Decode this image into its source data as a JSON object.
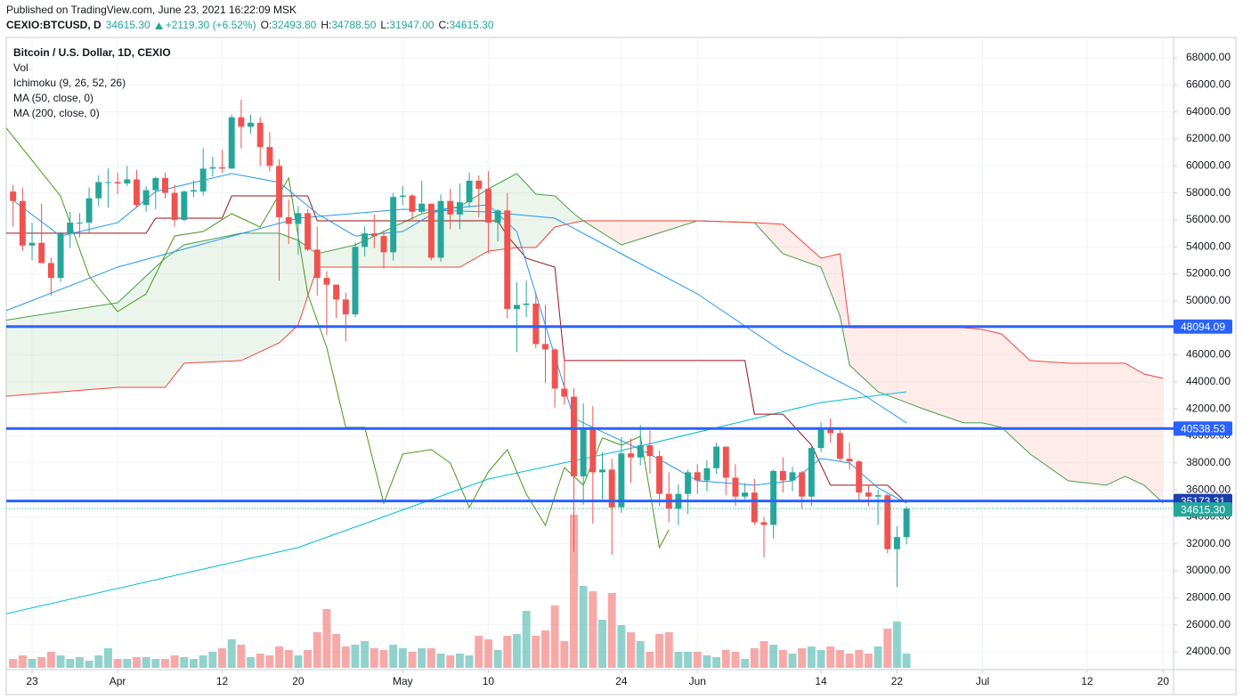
{
  "header": {
    "published": "Published on TradingView.com, June 23, 2021 16:22:09 MSK",
    "symbol": "CEXIO:BTCUSD, D",
    "last": "34615.30",
    "change": "+2119.30 (+6.52%)",
    "ohlc": [
      {
        "key": "O:",
        "value": "32493.80"
      },
      {
        "key": "H:",
        "value": "34788.50"
      },
      {
        "key": "L:",
        "value": "31947.00"
      },
      {
        "key": "C:",
        "value": "34615.30"
      }
    ]
  },
  "chart_data": {
    "type": "candlestick",
    "title": "Bitcoin / U.S. Dollar, 1D, CEXIO",
    "legend": [
      "Vol",
      "Ichimoku (9, 26, 52, 26)",
      "MA (50, close, 0)",
      "MA (200, close, 0)"
    ],
    "up_color": "#26a69a",
    "down_color": "#ef5350",
    "x": [
      "2021-03-21",
      "2021-03-22",
      "2021-03-23",
      "2021-03-24",
      "2021-03-25",
      "2021-03-26",
      "2021-03-27",
      "2021-03-28",
      "2021-03-29",
      "2021-03-30",
      "2021-03-31",
      "2021-04-01",
      "2021-04-02",
      "2021-04-03",
      "2021-04-04",
      "2021-04-05",
      "2021-04-06",
      "2021-04-07",
      "2021-04-08",
      "2021-04-09",
      "2021-04-10",
      "2021-04-11",
      "2021-04-12",
      "2021-04-13",
      "2021-04-14",
      "2021-04-15",
      "2021-04-16",
      "2021-04-17",
      "2021-04-18",
      "2021-04-19",
      "2021-04-20",
      "2021-04-21",
      "2021-04-22",
      "2021-04-23",
      "2021-04-24",
      "2021-04-25",
      "2021-04-26",
      "2021-04-27",
      "2021-04-28",
      "2021-04-29",
      "2021-04-30",
      "2021-05-01",
      "2021-05-02",
      "2021-05-03",
      "2021-05-04",
      "2021-05-05",
      "2021-05-06",
      "2021-05-07",
      "2021-05-08",
      "2021-05-09",
      "2021-05-10",
      "2021-05-11",
      "2021-05-12",
      "2021-05-13",
      "2021-05-14",
      "2021-05-15",
      "2021-05-16",
      "2021-05-17",
      "2021-05-18",
      "2021-05-19",
      "2021-05-20",
      "2021-05-21",
      "2021-05-22",
      "2021-05-23",
      "2021-05-24",
      "2021-05-25",
      "2021-05-26",
      "2021-05-27",
      "2021-05-28",
      "2021-05-29",
      "2021-05-30",
      "2021-05-31",
      "2021-06-01",
      "2021-06-02",
      "2021-06-03",
      "2021-06-04",
      "2021-06-05",
      "2021-06-06",
      "2021-06-07",
      "2021-06-08",
      "2021-06-09",
      "2021-06-10",
      "2021-06-11",
      "2021-06-12",
      "2021-06-13",
      "2021-06-14",
      "2021-06-15",
      "2021-06-16",
      "2021-06-17",
      "2021-06-18",
      "2021-06-19",
      "2021-06-20",
      "2021-06-21",
      "2021-06-22",
      "2021-06-23"
    ],
    "open": [
      58100,
      57400,
      54100,
      54300,
      52800,
      51700,
      55000,
      55800,
      55800,
      57600,
      58800,
      58800,
      58700,
      59000,
      57100,
      58200,
      59100,
      58000,
      56000,
      58100,
      58100,
      59800,
      59900,
      59800,
      63600,
      62900,
      63200,
      61400,
      60000,
      56200,
      55700,
      56500,
      53800,
      51700,
      51200,
      50100,
      49000,
      54000,
      55000,
      54800,
      53600,
      57700,
      57800,
      56600,
      57200,
      53200,
      57400,
      56400,
      57300,
      58900,
      58300,
      55800,
      56700,
      49400,
      49700,
      49800,
      46800,
      46400,
      43500,
      42900,
      37000,
      40600,
      37300,
      37500,
      34700,
      38700,
      38400,
      39300,
      38500,
      35700,
      34600,
      35700,
      37300,
      36700,
      37600,
      39200,
      36900,
      35500,
      35800,
      33600,
      33400,
      37400,
      36700,
      37300,
      35500,
      39100,
      40500,
      40200,
      38300,
      38100,
      35800,
      35500,
      35600,
      31600,
      32493.8
    ],
    "high": [
      58600,
      58400,
      55800,
      57200,
      53200,
      55100,
      56600,
      56500,
      58400,
      59300,
      59800,
      59500,
      60000,
      59700,
      58500,
      59200,
      59500,
      58600,
      58200,
      58900,
      61300,
      60700,
      61200,
      63800,
      64900,
      63800,
      63600,
      62500,
      60500,
      57500,
      57000,
      56800,
      55500,
      52200,
      51200,
      50600,
      54300,
      55500,
      56400,
      55200,
      58000,
      58500,
      57900,
      58900,
      57200,
      57900,
      58300,
      58700,
      59500,
      59300,
      59600,
      56800,
      58000,
      51400,
      51500,
      50600,
      49700,
      46500,
      45800,
      43500,
      42400,
      42200,
      38800,
      38300,
      39900,
      39800,
      40800,
      40400,
      38900,
      37300,
      36400,
      37500,
      37900,
      38200,
      39500,
      39200,
      37900,
      36500,
      36800,
      34000,
      37500,
      38400,
      37700,
      37400,
      39300,
      41000,
      41300,
      40500,
      39500,
      38200,
      36400,
      36000,
      35700,
      33300,
      34788.5
    ],
    "low": [
      55500,
      53700,
      53000,
      52800,
      50400,
      51400,
      53900,
      54700,
      55000,
      57000,
      56900,
      57900,
      58500,
      56900,
      56600,
      56800,
      57600,
      55500,
      55900,
      57700,
      57800,
      59200,
      59500,
      59800,
      61300,
      62400,
      60000,
      59600,
      51500,
      54200,
      53400,
      53700,
      50400,
      47500,
      48700,
      47000,
      48800,
      53300,
      53900,
      52400,
      53000,
      57100,
      56000,
      56500,
      53000,
      52900,
      55300,
      55300,
      56900,
      56200,
      53500,
      54400,
      48700,
      46200,
      48800,
      46500,
      43900,
      42100,
      42300,
      31400,
      34900,
      33500,
      35300,
      31200,
      34300,
      36500,
      37800,
      37200,
      34800,
      33600,
      33400,
      34200,
      35700,
      35900,
      37200,
      35600,
      34800,
      35300,
      33400,
      31000,
      32400,
      35800,
      35900,
      34600,
      34800,
      38800,
      39500,
      38100,
      37500,
      35200,
      34800,
      33400,
      31300,
      28800,
      31947
    ],
    "close": [
      57400,
      54100,
      54300,
      52800,
      51700,
      55000,
      55800,
      55800,
      57600,
      58800,
      58800,
      58700,
      59000,
      57100,
      58200,
      59100,
      58000,
      56000,
      58100,
      58200,
      59800,
      59900,
      59800,
      63600,
      62900,
      63200,
      61400,
      60000,
      56200,
      55700,
      56500,
      53800,
      51700,
      51200,
      50100,
      49000,
      54000,
      55000,
      54800,
      53600,
      57700,
      57800,
      56600,
      57200,
      53200,
      57400,
      56400,
      57300,
      58900,
      58300,
      55800,
      56700,
      49400,
      49700,
      49800,
      46800,
      46400,
      43500,
      42900,
      37000,
      40600,
      37300,
      37500,
      34700,
      38700,
      38400,
      39300,
      38500,
      35700,
      34600,
      35700,
      37300,
      36700,
      37600,
      39200,
      36900,
      35500,
      35800,
      33600,
      33400,
      37400,
      36700,
      37300,
      35500,
      39100,
      40500,
      40200,
      38300,
      38100,
      35800,
      35500,
      35600,
      31600,
      32500,
      34615.3
    ],
    "volume": [
      500,
      700,
      500,
      600,
      900,
      700,
      500,
      600,
      400,
      700,
      1100,
      500,
      500,
      600,
      600,
      500,
      500,
      700,
      600,
      500,
      700,
      900,
      1100,
      1600,
      1300,
      600,
      800,
      700,
      1200,
      1000,
      700,
      1000,
      2000,
      3300,
      1900,
      1200,
      1300,
      1500,
      1100,
      1000,
      1300,
      1100,
      900,
      1100,
      1100,
      800,
      700,
      800,
      700,
      1800,
      1600,
      1000,
      1800,
      1900,
      3200,
      1800,
      2100,
      3500,
      1500,
      8600,
      4600,
      4300,
      2700,
      4200,
      2400,
      2000,
      1500,
      900,
      1900,
      2000,
      900,
      900,
      900,
      700,
      600,
      1000,
      900,
      500,
      1100,
      1500,
      1300,
      1000,
      800,
      1100,
      1200,
      1000,
      1200,
      1000,
      800,
      1000,
      800,
      1200,
      2200,
      2600,
      800
    ],
    "vlim": [
      0,
      10000
    ],
    "ma50": {
      "color": "#2196f3",
      "x": [
        "2021-03-20",
        "2021-04-01",
        "2021-04-20",
        "2021-05-01",
        "2021-05-10",
        "2021-05-17",
        "2021-05-24",
        "2021-06-01",
        "2021-06-10",
        "2021-06-14",
        "2021-06-18",
        "2021-06-23"
      ],
      "values": [
        49200,
        52500,
        56130,
        56790,
        56590,
        56130,
        53490,
        50520,
        46230,
        44720,
        43260,
        40960
      ]
    },
    "ma200": {
      "color": "#00bcd4",
      "x": [
        "2021-03-20",
        "2021-04-20",
        "2021-05-10",
        "2021-05-24",
        "2021-06-14",
        "2021-06-23"
      ],
      "values": [
        26775,
        31722,
        36800,
        38910,
        42470,
        43260
      ]
    },
    "ichimoku": {
      "conversion": {
        "color": "#2196f3",
        "x": [
          "2021-03-21",
          "2021-03-26",
          "2021-04-01",
          "2021-04-05",
          "2021-04-13",
          "2021-04-18",
          "2021-04-22",
          "2021-04-26",
          "2021-05-01",
          "2021-05-05",
          "2021-05-10",
          "2021-05-13",
          "2021-05-19",
          "2021-05-22",
          "2021-05-27",
          "2021-06-01",
          "2021-06-07",
          "2021-06-11",
          "2021-06-14",
          "2021-06-17",
          "2021-06-20",
          "2021-06-23"
        ],
        "values": [
          57450,
          54800,
          55800,
          58100,
          59430,
          58770,
          56460,
          54800,
          55140,
          56790,
          57120,
          55140,
          41290,
          40300,
          38650,
          36670,
          36340,
          36670,
          38320,
          37990,
          36140,
          35020
        ]
      },
      "base": {
        "color": "#991515",
        "x": [
          "2021-03-20",
          "2021-04-04",
          "2021-04-05",
          "2021-04-12",
          "2021-04-13",
          "2021-04-21",
          "2021-04-22",
          "2021-05-11",
          "2021-05-12",
          "2021-05-14",
          "2021-05-17",
          "2021-05-18",
          "2021-06-06",
          "2021-06-07",
          "2021-06-10",
          "2021-06-13",
          "2021-06-15",
          "2021-06-21",
          "2021-06-23"
        ],
        "values": [
          55010,
          55010,
          56130,
          56130,
          57780,
          57780,
          55930,
          55930,
          54810,
          53160,
          52500,
          45580,
          45580,
          41610,
          41610,
          39310,
          36340,
          36340,
          35020
        ]
      },
      "lagging": {
        "color": "#459915",
        "x": [
          "2021-03-20",
          "2021-03-23",
          "2021-03-26",
          "2021-03-29",
          "2021-04-01",
          "2021-04-04",
          "2021-04-07",
          "2021-04-10",
          "2021-04-13",
          "2021-04-16",
          "2021-04-19",
          "2021-04-21",
          "2021-04-23",
          "2021-04-25",
          "2021-04-27",
          "2021-04-29",
          "2021-05-01",
          "2021-05-04",
          "2021-05-06",
          "2021-05-08",
          "2021-05-10",
          "2021-05-12",
          "2021-05-14",
          "2021-05-16",
          "2021-05-18",
          "2021-05-20",
          "2021-05-22",
          "2021-05-24",
          "2021-05-26",
          "2021-05-28",
          "2021-05-29"
        ],
        "values": [
          63050,
          60410,
          57770,
          51840,
          49200,
          50520,
          54810,
          55140,
          56460,
          55470,
          59100,
          50520,
          46560,
          40630,
          40630,
          35020,
          38650,
          38980,
          37990,
          34690,
          37330,
          38980,
          35680,
          33370,
          37660,
          36340,
          39850,
          39310,
          39970,
          31720,
          33040
        ]
      },
      "cloud": {
        "color_a": "#43a047",
        "color_b": "#f44336",
        "x": [
          "2021-03-20",
          "2021-04-01",
          "2021-04-06",
          "2021-04-08",
          "2021-04-14",
          "2021-04-18",
          "2021-04-20",
          "2021-04-22",
          "2021-04-26",
          "2021-04-30",
          "2021-05-03",
          "2021-05-07",
          "2021-05-10",
          "2021-05-13",
          "2021-05-15",
          "2021-05-17",
          "2021-05-19",
          "2021-05-20",
          "2021-05-24",
          "2021-06-01",
          "2021-06-07",
          "2021-06-10",
          "2021-06-14",
          "2021-06-16",
          "2021-06-17",
          "2021-06-20",
          "2021-06-25",
          "2021-06-29",
          "2021-07-01",
          "2021-07-03",
          "2021-07-06",
          "2021-07-10",
          "2021-07-14",
          "2021-07-16",
          "2021-07-18",
          "2021-07-20"
        ],
        "span_a": [
          48540,
          49860,
          53160,
          54150,
          55010,
          55010,
          54480,
          53490,
          54150,
          55470,
          56460,
          56990,
          58300,
          59430,
          57910,
          57780,
          56460,
          55930,
          54150,
          55930,
          55800,
          53490,
          52500,
          48870,
          45240,
          43260,
          41940,
          40960,
          40960,
          40630,
          38650,
          36670,
          36340,
          37000,
          36340,
          35020
        ],
        "span_b": [
          42930,
          43590,
          43590,
          45380,
          45580,
          46890,
          48210,
          52500,
          52500,
          52500,
          52500,
          52500,
          53690,
          53950,
          53950,
          55470,
          55800,
          55930,
          55930,
          55930,
          55800,
          55670,
          53160,
          53490,
          48010,
          48010,
          48010,
          48010,
          47880,
          47550,
          45580,
          45380,
          45380,
          45380,
          44580,
          44250
        ]
      }
    },
    "levels": {
      "values": [
        48094.09,
        40538.53,
        35173.31
      ],
      "color": "#2962ff",
      "label_colors": [
        "#2962ff",
        "#2962ff",
        "#1c3fae"
      ]
    },
    "last_price": {
      "value": 34615.3,
      "label": "34615.30",
      "color": "#26a69a"
    },
    "xlim": [
      "2021-03-20",
      "2021-07-21"
    ],
    "xticks": [
      {
        "value": "2021-03-23",
        "label": "23"
      },
      {
        "value": "2021-04-01",
        "label": "Apr"
      },
      {
        "value": "2021-04-12",
        "label": "12"
      },
      {
        "value": "2021-04-20",
        "label": "20"
      },
      {
        "value": "2021-05-01",
        "label": "May"
      },
      {
        "value": "2021-05-10",
        "label": "10"
      },
      {
        "value": "2021-05-24",
        "label": "24"
      },
      {
        "value": "2021-06-01",
        "label": "Jun"
      },
      {
        "value": "2021-06-14",
        "label": "14"
      },
      {
        "value": "2021-06-22",
        "label": "22"
      },
      {
        "value": "2021-07-01",
        "label": "Jul"
      },
      {
        "value": "2021-07-12",
        "label": "12"
      },
      {
        "value": "2021-07-20",
        "label": "20"
      }
    ],
    "ylim": [
      22680,
      69520
    ],
    "yticks": [
      {
        "value": 24000,
        "label": "24000.00"
      },
      {
        "value": 26000,
        "label": "26000.00"
      },
      {
        "value": 28000,
        "label": "28000.00"
      },
      {
        "value": 30000,
        "label": "30000.00"
      },
      {
        "value": 32000,
        "label": "32000.00"
      },
      {
        "value": 34000,
        "label": "34000.00"
      },
      {
        "value": 36000,
        "label": "36000.00"
      },
      {
        "value": 38000,
        "label": "38000.00"
      },
      {
        "value": 40000,
        "label": "40000.00"
      },
      {
        "value": 42000,
        "label": "42000.00"
      },
      {
        "value": 44000,
        "label": "44000.00"
      },
      {
        "value": 46000,
        "label": "46000.00"
      },
      {
        "value": 48000,
        "label": "48000.00"
      },
      {
        "value": 50000,
        "label": "50000.00"
      },
      {
        "value": 52000,
        "label": "52000.00"
      },
      {
        "value": 54000,
        "label": "54000.00"
      },
      {
        "value": 56000,
        "label": "56000.00"
      },
      {
        "value": 58000,
        "label": "58000.00"
      },
      {
        "value": 60000,
        "label": "60000.00"
      },
      {
        "value": 62000,
        "label": "62000.00"
      },
      {
        "value": 64000,
        "label": "64000.00"
      },
      {
        "value": 66000,
        "label": "66000.00"
      },
      {
        "value": 68000,
        "label": "68000.00"
      }
    ],
    "grid": true
  }
}
